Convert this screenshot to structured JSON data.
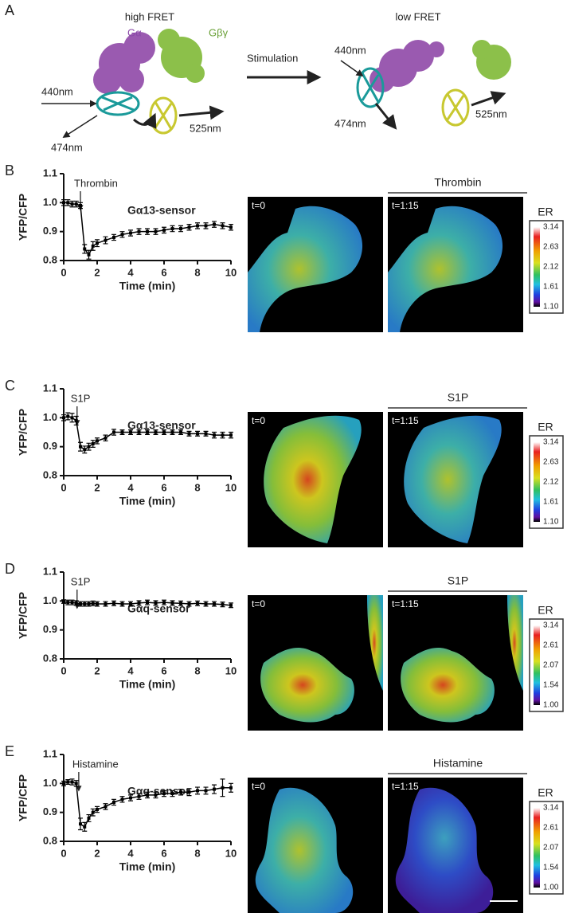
{
  "panel_a": {
    "letter": "A",
    "left": {
      "title": "high FRET",
      "galpha": "Gα",
      "gbg": "Gβγ",
      "excitation": "440nm",
      "cfp": "474nm",
      "yfp": "525nm"
    },
    "arrow": "Stimulation",
    "right": {
      "title": "low FRET",
      "excitation": "440nm",
      "cfp": "474nm",
      "yfp": "525nm"
    }
  },
  "chart_data": [
    {
      "type": "line",
      "letter": "B",
      "sensor": "Gα13-sensor",
      "stimulus": {
        "label": "Thrombin",
        "time": 1
      },
      "xlabel": "Time (min)",
      "ylabel": "YFP/CFP",
      "color": "#000000",
      "x": [
        0,
        0.25,
        0.5,
        0.75,
        1,
        1.25,
        1.5,
        1.75,
        2,
        2.5,
        3,
        3.5,
        4,
        4.5,
        5,
        5.5,
        6,
        6.5,
        7,
        7.5,
        8,
        8.5,
        9,
        9.5,
        10
      ],
      "values": [
        1.0,
        1.0,
        0.995,
        0.995,
        0.99,
        0.84,
        0.82,
        0.85,
        0.86,
        0.87,
        0.88,
        0.89,
        0.895,
        0.9,
        0.9,
        0.9,
        0.905,
        0.91,
        0.91,
        0.915,
        0.92,
        0.92,
        0.925,
        0.92,
        0.915
      ],
      "errors": [
        0.01,
        0.01,
        0.01,
        0.01,
        0.01,
        0.015,
        0.015,
        0.015,
        0.012,
        0.012,
        0.01,
        0.01,
        0.01,
        0.01,
        0.01,
        0.01,
        0.01,
        0.01,
        0.01,
        0.01,
        0.01,
        0.01,
        0.01,
        0.01,
        0.01
      ],
      "xlim": [
        0,
        10
      ],
      "xticks": [
        0,
        2,
        4,
        6,
        8,
        10
      ],
      "ylim": [
        0.8,
        1.1
      ],
      "yticks": [
        0.8,
        0.9,
        {
          "value": 1,
          "label": "1.0"
        },
        1.1
      ]
    },
    {
      "type": "line",
      "letter": "C",
      "sensor": "Gα13-sensor",
      "stimulus": {
        "label": "S1P",
        "time": 0.8
      },
      "xlabel": "Time (min)",
      "ylabel": "YFP/CFP",
      "color": "#000000",
      "x": [
        0,
        0.25,
        0.5,
        0.75,
        1,
        1.25,
        1.5,
        1.75,
        2,
        2.5,
        3,
        3.5,
        4,
        4.5,
        5,
        5.5,
        6,
        6.5,
        7,
        7.5,
        8,
        8.5,
        9,
        9.5,
        10
      ],
      "values": [
        1.0,
        1.005,
        1.0,
        0.99,
        0.9,
        0.89,
        0.9,
        0.91,
        0.92,
        0.93,
        0.95,
        0.95,
        0.95,
        0.95,
        0.95,
        0.95,
        0.95,
        0.95,
        0.95,
        0.945,
        0.945,
        0.945,
        0.94,
        0.94,
        0.94
      ],
      "errors": [
        0.01,
        0.012,
        0.015,
        0.015,
        0.015,
        0.012,
        0.012,
        0.012,
        0.01,
        0.01,
        0.01,
        0.008,
        0.008,
        0.008,
        0.008,
        0.008,
        0.008,
        0.008,
        0.008,
        0.008,
        0.008,
        0.008,
        0.01,
        0.01,
        0.01
      ],
      "xlim": [
        0,
        10
      ],
      "xticks": [
        0,
        2,
        4,
        6,
        8,
        10
      ],
      "ylim": [
        0.8,
        1.1
      ],
      "yticks": [
        0.8,
        0.9,
        {
          "value": 1,
          "label": "1.0"
        },
        1.1
      ]
    },
    {
      "type": "line",
      "letter": "D",
      "sensor": "Gαq-sensor",
      "stimulus": {
        "label": "S1P",
        "time": 0.8
      },
      "xlabel": "Time (min)",
      "ylabel": "YFP/CFP",
      "color": "#000000",
      "x": [
        0,
        0.25,
        0.5,
        0.75,
        1,
        1.25,
        1.5,
        1.75,
        2,
        2.5,
        3,
        3.5,
        4,
        4.5,
        5,
        5.5,
        6,
        6.5,
        7,
        7.5,
        8,
        8.5,
        9,
        9.5,
        10
      ],
      "values": [
        0.998,
        0.995,
        0.995,
        0.993,
        0.99,
        0.99,
        0.99,
        0.992,
        0.99,
        0.99,
        0.992,
        0.99,
        0.99,
        0.993,
        0.995,
        0.993,
        0.995,
        0.993,
        0.992,
        0.99,
        0.992,
        0.99,
        0.99,
        0.988,
        0.985
      ],
      "errors": [
        0.006,
        0.008,
        0.008,
        0.008,
        0.008,
        0.008,
        0.008,
        0.008,
        0.008,
        0.008,
        0.008,
        0.008,
        0.008,
        0.008,
        0.008,
        0.008,
        0.008,
        0.008,
        0.008,
        0.008,
        0.008,
        0.008,
        0.008,
        0.008,
        0.008
      ],
      "xlim": [
        0,
        10
      ],
      "xticks": [
        0,
        2,
        4,
        6,
        8,
        10
      ],
      "ylim": [
        0.8,
        1.1
      ],
      "yticks": [
        0.8,
        0.9,
        {
          "value": 1,
          "label": "1.0"
        },
        1.1
      ]
    },
    {
      "type": "line",
      "letter": "E",
      "sensor": "Gαq-sensor",
      "stimulus": {
        "label": "Histamine",
        "time": 0.9
      },
      "xlabel": "Time (min)",
      "ylabel": "YFP/CFP",
      "color": "#000000",
      "x": [
        0,
        0.25,
        0.5,
        0.75,
        1,
        1.25,
        1.5,
        1.75,
        2,
        2.5,
        3,
        3.5,
        4,
        4.5,
        5,
        5.5,
        6,
        6.5,
        7,
        7.5,
        8,
        8.5,
        9,
        9.5,
        10
      ],
      "values": [
        1.0,
        1.005,
        1.005,
        1.0,
        0.86,
        0.85,
        0.88,
        0.9,
        0.91,
        0.92,
        0.935,
        0.945,
        0.95,
        0.955,
        0.96,
        0.96,
        0.965,
        0.965,
        0.97,
        0.97,
        0.975,
        0.975,
        0.98,
        0.985,
        0.985
      ],
      "errors": [
        0.008,
        0.008,
        0.01,
        0.01,
        0.02,
        0.015,
        0.012,
        0.012,
        0.01,
        0.01,
        0.01,
        0.01,
        0.01,
        0.01,
        0.01,
        0.01,
        0.01,
        0.01,
        0.01,
        0.012,
        0.012,
        0.012,
        0.015,
        0.03,
        0.015
      ],
      "xlim": [
        0,
        10
      ],
      "xticks": [
        0,
        2,
        4,
        6,
        8,
        10
      ],
      "ylim": [
        0.8,
        1.1
      ],
      "yticks": [
        0.8,
        0.9,
        {
          "value": 1,
          "label": "1.0"
        },
        1.1
      ]
    }
  ],
  "image_panels": [
    {
      "times": [
        "t=0",
        "t=1:15"
      ],
      "treatment": "Thrombin",
      "colorbar": {
        "title": "ER",
        "ticks": [
          3.14,
          2.63,
          2.12,
          1.61,
          {
            "value": 1.1,
            "label": "1.10"
          }
        ]
      }
    },
    {
      "times": [
        "t=0",
        "t=1:15"
      ],
      "treatment": "S1P",
      "colorbar": {
        "title": "ER",
        "ticks": [
          3.14,
          2.63,
          2.12,
          1.61,
          {
            "value": 1.1,
            "label": "1.10"
          }
        ]
      }
    },
    {
      "times": [
        "t=0",
        "t=1:15"
      ],
      "treatment": "S1P",
      "colorbar": {
        "title": "ER",
        "ticks": [
          3.14,
          2.61,
          2.07,
          1.54,
          {
            "value": 1,
            "label": "1.00"
          }
        ]
      }
    },
    {
      "times": [
        "t=0",
        "t=1:15"
      ],
      "treatment": "Histamine",
      "colorbar": {
        "title": "ER",
        "ticks": [
          3.14,
          2.61,
          2.07,
          1.54,
          {
            "value": 1,
            "label": "1.00"
          }
        ]
      }
    }
  ]
}
